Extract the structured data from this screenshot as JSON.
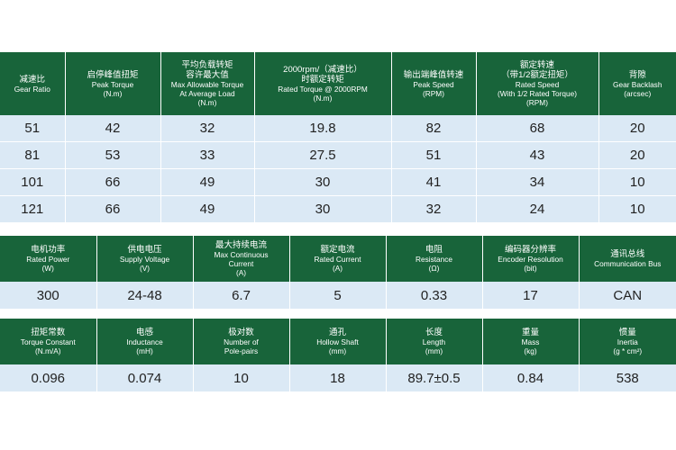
{
  "table1": {
    "headers": [
      {
        "zh": "减速比",
        "en": [
          "Gear Ratio"
        ]
      },
      {
        "zh": "启停峰值扭矩",
        "en": [
          "Peak Torque",
          "(N.m)"
        ]
      },
      {
        "zh": "平均负载转矩",
        "zh2": "容许最大值",
        "en": [
          "Max Allowable Torque",
          "At Average Load",
          "(N.m)"
        ]
      },
      {
        "zh": "2000rpm/（减速比）",
        "zh2": "时额定转矩",
        "en": [
          "Rated Torque @ 2000RPM",
          "(N.m)"
        ]
      },
      {
        "zh": "输出端峰值转速",
        "en": [
          "Peak Speed",
          "(RPM)"
        ]
      },
      {
        "zh": "额定转速",
        "zh2": "（带1/2额定扭矩）",
        "en": [
          "Rated Speed",
          "(With 1/2 Rated Torque)",
          "(RPM)"
        ]
      },
      {
        "zh": "背隙",
        "en": [
          "Gear Backlash",
          "(arcsec)"
        ]
      }
    ],
    "rows": [
      [
        "51",
        "42",
        "32",
        "19.8",
        "82",
        "68",
        "20"
      ],
      [
        "81",
        "53",
        "33",
        "27.5",
        "51",
        "43",
        "20"
      ],
      [
        "101",
        "66",
        "49",
        "30",
        "41",
        "34",
        "10"
      ],
      [
        "121",
        "66",
        "49",
        "30",
        "32",
        "24",
        "10"
      ]
    ]
  },
  "table2": {
    "headers": [
      {
        "zh": "电机功率",
        "en": [
          "Rated Power",
          "(W)"
        ]
      },
      {
        "zh": "供电电压",
        "en": [
          "Supply Voltage",
          "(V)"
        ]
      },
      {
        "zh": "最大持续电流",
        "en": [
          "Max Continuous",
          "Current",
          "(A)"
        ]
      },
      {
        "zh": "额定电流",
        "en": [
          "Rated Current",
          "(A)"
        ]
      },
      {
        "zh": "电阻",
        "en": [
          "Resistance",
          "(Ω)"
        ]
      },
      {
        "zh": "编码器分辨率",
        "en": [
          "Encoder Resolution",
          "(bit)"
        ]
      },
      {
        "zh": "通讯总线",
        "en": [
          "Communication Bus"
        ]
      }
    ],
    "rows": [
      [
        "300",
        "24-48",
        "6.7",
        "5",
        "0.33",
        "17",
        "CAN"
      ]
    ]
  },
  "table3": {
    "headers": [
      {
        "zh": "扭矩常数",
        "en": [
          "Torque Constant",
          "(N.m/A)"
        ]
      },
      {
        "zh": "电感",
        "en": [
          "Inductance",
          "(mH)"
        ]
      },
      {
        "zh": "极对数",
        "en": [
          "Number of",
          "Pole-pairs"
        ]
      },
      {
        "zh": "通孔",
        "en": [
          "Hollow Shaft",
          "(mm)"
        ]
      },
      {
        "zh": "长度",
        "en": [
          "Length",
          "(mm)"
        ]
      },
      {
        "zh": "重量",
        "en": [
          "Mass",
          "(kg)"
        ]
      },
      {
        "zh": "惯量",
        "en": [
          "Inertia",
          "(g * cm²)"
        ]
      }
    ],
    "rows": [
      [
        "0.096",
        "0.074",
        "10",
        "18",
        "89.7±0.5",
        "0.84",
        "538"
      ]
    ]
  }
}
